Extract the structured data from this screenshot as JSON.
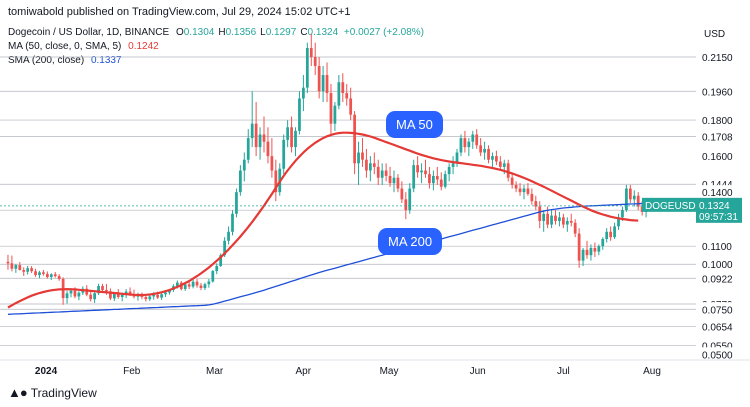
{
  "header": {
    "published": "tomiwabold published on TradingView.com, Jul 29, 2024 15:02 UTC+1",
    "symbol_line": "Dogecoin / US Dollar, 1D, BINANCE",
    "ohlc": [
      {
        "k": "O",
        "v": "0.1304"
      },
      {
        "k": "H",
        "v": "0.1356"
      },
      {
        "k": "L",
        "v": "0.1297"
      },
      {
        "k": "C",
        "v": "0.1324"
      }
    ],
    "change": "+0.0027 (+2.08%)",
    "ma50_label": "MA (50, close, 0, SMA, 5)",
    "ma50_value": "0.1242",
    "sma200_label": "SMA (200, close)",
    "sma200_value": "0.1337"
  },
  "callouts": {
    "ma50": "MA 50",
    "ma200": "MA 200"
  },
  "footer": {
    "brand": "TradingView"
  },
  "colors": {
    "up": "#26a69a",
    "down": "#ef5350",
    "ma50": "#e53935",
    "sma200": "#1e4fd8",
    "axis_text": "#131722",
    "grid": "#e0e3eb",
    "badge_current": "#26a69a"
  },
  "chart_data": {
    "type": "candlestick",
    "currency": "USD",
    "x_axis_ticks": [
      "2024",
      "Feb",
      "Mar",
      "Apr",
      "May",
      "Jun",
      "Jul",
      "Aug"
    ],
    "y_axis_labels": [
      "0.2150",
      "0.1960",
      "0.1800",
      "0.1708",
      "0.1600",
      "0.1444",
      "0.1400",
      "0.1300",
      "0.1100",
      "0.1000",
      "0.0922",
      "0.0779",
      "0.0750",
      "0.0654",
      "0.0550",
      "0.0500"
    ],
    "y_range": [
      0.0485,
      0.23
    ],
    "horizontal_levels": [
      0.215,
      0.196,
      0.18,
      0.1708,
      0.1444,
      0.13,
      0.11,
      0.1,
      0.0922,
      0.0779,
      0.075,
      0.0654,
      0.055
    ],
    "current_price": {
      "symbol": "DOGEUSD",
      "price": "0.1324",
      "countdown": "09:57:31",
      "value": 0.1324
    },
    "candles": [
      [
        0.1013,
        0.1052,
        0.097,
        0.1005
      ],
      [
        0.1005,
        0.1048,
        0.096,
        0.0975
      ],
      [
        0.0975,
        0.1002,
        0.0952,
        0.0995
      ],
      [
        0.0995,
        0.1012,
        0.0965,
        0.0968
      ],
      [
        0.0968,
        0.0983,
        0.0935,
        0.0958
      ],
      [
        0.0958,
        0.0991,
        0.0943,
        0.0978
      ],
      [
        0.0978,
        0.099,
        0.0951,
        0.0961
      ],
      [
        0.0961,
        0.0975,
        0.093,
        0.094
      ],
      [
        0.094,
        0.0963,
        0.0922,
        0.0955
      ],
      [
        0.0955,
        0.0968,
        0.0936,
        0.0946
      ],
      [
        0.0946,
        0.096,
        0.092,
        0.0929
      ],
      [
        0.0929,
        0.095,
        0.0912,
        0.0944
      ],
      [
        0.0944,
        0.0957,
        0.0926,
        0.0934
      ],
      [
        0.0934,
        0.0945,
        0.0908,
        0.0918
      ],
      [
        0.0918,
        0.0927,
        0.0775,
        0.0812
      ],
      [
        0.0812,
        0.0852,
        0.0782,
        0.0838
      ],
      [
        0.0838,
        0.0868,
        0.0816,
        0.0853
      ],
      [
        0.0853,
        0.0872,
        0.0811,
        0.0821
      ],
      [
        0.0821,
        0.085,
        0.08,
        0.0842
      ],
      [
        0.0842,
        0.0877,
        0.0829,
        0.0864
      ],
      [
        0.0864,
        0.0884,
        0.0822,
        0.0831
      ],
      [
        0.0831,
        0.0855,
        0.0793,
        0.0806
      ],
      [
        0.0806,
        0.0845,
        0.0785,
        0.0839
      ],
      [
        0.0839,
        0.0892,
        0.0829,
        0.0879
      ],
      [
        0.0879,
        0.0891,
        0.0843,
        0.0857
      ],
      [
        0.0857,
        0.089,
        0.083,
        0.085
      ],
      [
        0.085,
        0.0866,
        0.08,
        0.081
      ],
      [
        0.081,
        0.0843,
        0.0795,
        0.0836
      ],
      [
        0.0836,
        0.0862,
        0.0808,
        0.0818
      ],
      [
        0.0818,
        0.0843,
        0.0794,
        0.0832
      ],
      [
        0.0832,
        0.0862,
        0.0812,
        0.0848
      ],
      [
        0.0848,
        0.0871,
        0.0824,
        0.0834
      ],
      [
        0.0834,
        0.0859,
        0.081,
        0.082
      ],
      [
        0.082,
        0.0842,
        0.0798,
        0.0828
      ],
      [
        0.0828,
        0.0843,
        0.0805,
        0.0818
      ],
      [
        0.0818,
        0.0832,
        0.0793,
        0.0806
      ],
      [
        0.0806,
        0.0834,
        0.0796,
        0.0821
      ],
      [
        0.0821,
        0.0845,
        0.0803,
        0.083
      ],
      [
        0.083,
        0.0848,
        0.0807,
        0.0815
      ],
      [
        0.0815,
        0.084,
        0.0802,
        0.0833
      ],
      [
        0.0833,
        0.085,
        0.0818,
        0.0843
      ],
      [
        0.0843,
        0.0862,
        0.0831,
        0.0857
      ],
      [
        0.0857,
        0.0889,
        0.0846,
        0.0878
      ],
      [
        0.0878,
        0.091,
        0.0865,
        0.0898
      ],
      [
        0.0898,
        0.0907,
        0.0855,
        0.0862
      ],
      [
        0.0862,
        0.0892,
        0.0852,
        0.0888
      ],
      [
        0.0888,
        0.0908,
        0.0862,
        0.0876
      ],
      [
        0.0876,
        0.0915,
        0.0866,
        0.0903
      ],
      [
        0.0903,
        0.0918,
        0.087,
        0.0882
      ],
      [
        0.0882,
        0.0896,
        0.0856,
        0.0868
      ],
      [
        0.0868,
        0.0897,
        0.0857,
        0.0889
      ],
      [
        0.0889,
        0.0918,
        0.087,
        0.0904
      ],
      [
        0.0904,
        0.0968,
        0.0898,
        0.0962
      ],
      [
        0.0962,
        0.1005,
        0.0945,
        0.099
      ],
      [
        0.099,
        0.106,
        0.0985,
        0.105
      ],
      [
        0.105,
        0.115,
        0.104,
        0.113
      ],
      [
        0.113,
        0.121,
        0.111,
        0.118
      ],
      [
        0.118,
        0.13,
        0.116,
        0.128
      ],
      [
        0.128,
        0.142,
        0.126,
        0.14
      ],
      [
        0.14,
        0.155,
        0.138,
        0.152
      ],
      [
        0.152,
        0.162,
        0.146,
        0.158
      ],
      [
        0.158,
        0.175,
        0.156,
        0.17
      ],
      [
        0.17,
        0.196,
        0.165,
        0.178
      ],
      [
        0.178,
        0.19,
        0.16,
        0.165
      ],
      [
        0.165,
        0.176,
        0.158,
        0.172
      ],
      [
        0.172,
        0.182,
        0.162,
        0.168
      ],
      [
        0.168,
        0.176,
        0.156,
        0.16
      ],
      [
        0.16,
        0.17,
        0.148,
        0.152
      ],
      [
        0.152,
        0.158,
        0.135,
        0.14
      ],
      [
        0.14,
        0.156,
        0.138,
        0.153
      ],
      [
        0.153,
        0.172,
        0.15,
        0.169
      ],
      [
        0.169,
        0.18,
        0.165,
        0.176
      ],
      [
        0.176,
        0.182,
        0.162,
        0.165
      ],
      [
        0.165,
        0.176,
        0.16,
        0.174
      ],
      [
        0.174,
        0.196,
        0.172,
        0.192
      ],
      [
        0.192,
        0.205,
        0.185,
        0.198
      ],
      [
        0.198,
        0.223,
        0.195,
        0.22
      ],
      [
        0.22,
        0.228,
        0.21,
        0.215
      ],
      [
        0.215,
        0.223,
        0.205,
        0.21
      ],
      [
        0.21,
        0.215,
        0.192,
        0.196
      ],
      [
        0.196,
        0.21,
        0.19,
        0.205
      ],
      [
        0.205,
        0.212,
        0.19,
        0.195
      ],
      [
        0.195,
        0.2,
        0.172,
        0.178
      ],
      [
        0.178,
        0.19,
        0.174,
        0.188
      ],
      [
        0.188,
        0.205,
        0.186,
        0.201
      ],
      [
        0.201,
        0.206,
        0.19,
        0.195
      ],
      [
        0.195,
        0.2,
        0.188,
        0.192
      ],
      [
        0.192,
        0.198,
        0.18,
        0.183
      ],
      [
        0.183,
        0.185,
        0.15,
        0.156
      ],
      [
        0.156,
        0.168,
        0.144,
        0.162
      ],
      [
        0.162,
        0.17,
        0.154,
        0.158
      ],
      [
        0.158,
        0.164,
        0.148,
        0.152
      ],
      [
        0.152,
        0.16,
        0.146,
        0.156
      ],
      [
        0.156,
        0.162,
        0.15,
        0.154
      ],
      [
        0.154,
        0.158,
        0.144,
        0.148
      ],
      [
        0.148,
        0.156,
        0.144,
        0.152
      ],
      [
        0.152,
        0.156,
        0.146,
        0.149
      ],
      [
        0.149,
        0.154,
        0.143,
        0.145
      ],
      [
        0.145,
        0.152,
        0.14,
        0.148
      ],
      [
        0.148,
        0.15,
        0.14,
        0.142
      ],
      [
        0.142,
        0.146,
        0.134,
        0.136
      ],
      [
        0.136,
        0.14,
        0.125,
        0.13
      ],
      [
        0.13,
        0.145,
        0.128,
        0.142
      ],
      [
        0.142,
        0.158,
        0.14,
        0.155
      ],
      [
        0.155,
        0.16,
        0.148,
        0.151
      ],
      [
        0.151,
        0.156,
        0.145,
        0.152
      ],
      [
        0.152,
        0.158,
        0.148,
        0.15
      ],
      [
        0.15,
        0.154,
        0.142,
        0.145
      ],
      [
        0.145,
        0.152,
        0.141,
        0.149
      ],
      [
        0.149,
        0.154,
        0.144,
        0.147
      ],
      [
        0.147,
        0.151,
        0.141,
        0.143
      ],
      [
        0.143,
        0.152,
        0.142,
        0.15
      ],
      [
        0.15,
        0.156,
        0.146,
        0.154
      ],
      [
        0.154,
        0.16,
        0.15,
        0.156
      ],
      [
        0.156,
        0.164,
        0.154,
        0.162
      ],
      [
        0.162,
        0.172,
        0.16,
        0.17
      ],
      [
        0.17,
        0.174,
        0.162,
        0.165
      ],
      [
        0.165,
        0.17,
        0.16,
        0.168
      ],
      [
        0.168,
        0.174,
        0.164,
        0.172
      ],
      [
        0.172,
        0.175,
        0.164,
        0.166
      ],
      [
        0.166,
        0.17,
        0.16,
        0.162
      ],
      [
        0.162,
        0.168,
        0.158,
        0.164
      ],
      [
        0.164,
        0.166,
        0.156,
        0.158
      ],
      [
        0.158,
        0.162,
        0.154,
        0.16
      ],
      [
        0.16,
        0.163,
        0.155,
        0.157
      ],
      [
        0.157,
        0.16,
        0.152,
        0.154
      ],
      [
        0.154,
        0.158,
        0.15,
        0.156
      ],
      [
        0.156,
        0.158,
        0.146,
        0.148
      ],
      [
        0.148,
        0.15,
        0.142,
        0.144
      ],
      [
        0.144,
        0.146,
        0.14,
        0.142
      ],
      [
        0.142,
        0.145,
        0.138,
        0.14
      ],
      [
        0.14,
        0.144,
        0.136,
        0.142
      ],
      [
        0.142,
        0.145,
        0.138,
        0.139
      ],
      [
        0.139,
        0.142,
        0.133,
        0.135
      ],
      [
        0.135,
        0.138,
        0.13,
        0.132
      ],
      [
        0.132,
        0.135,
        0.12,
        0.124
      ],
      [
        0.124,
        0.13,
        0.118,
        0.128
      ],
      [
        0.128,
        0.132,
        0.12,
        0.122
      ],
      [
        0.122,
        0.13,
        0.12,
        0.127
      ],
      [
        0.127,
        0.13,
        0.122,
        0.124
      ],
      [
        0.124,
        0.129,
        0.121,
        0.126
      ],
      [
        0.126,
        0.128,
        0.12,
        0.122
      ],
      [
        0.122,
        0.126,
        0.118,
        0.124
      ],
      [
        0.124,
        0.128,
        0.121,
        0.123
      ],
      [
        0.123,
        0.125,
        0.115,
        0.117
      ],
      [
        0.117,
        0.12,
        0.098,
        0.102
      ],
      [
        0.102,
        0.109,
        0.099,
        0.108
      ],
      [
        0.108,
        0.113,
        0.103,
        0.105
      ],
      [
        0.105,
        0.111,
        0.102,
        0.109
      ],
      [
        0.109,
        0.112,
        0.104,
        0.107
      ],
      [
        0.107,
        0.111,
        0.105,
        0.11
      ],
      [
        0.11,
        0.115,
        0.108,
        0.114
      ],
      [
        0.114,
        0.12,
        0.112,
        0.118
      ],
      [
        0.118,
        0.121,
        0.113,
        0.115
      ],
      [
        0.115,
        0.123,
        0.114,
        0.121
      ],
      [
        0.121,
        0.128,
        0.119,
        0.126
      ],
      [
        0.126,
        0.132,
        0.124,
        0.13
      ],
      [
        0.13,
        0.144,
        0.129,
        0.142
      ],
      [
        0.142,
        0.144,
        0.134,
        0.136
      ],
      [
        0.136,
        0.141,
        0.132,
        0.138
      ],
      [
        0.138,
        0.14,
        0.13,
        0.132
      ],
      [
        0.132,
        0.135,
        0.127,
        0.129
      ],
      [
        0.129,
        0.133,
        0.126,
        0.13
      ],
      [
        0.1304,
        0.1356,
        0.1297,
        0.1324
      ]
    ],
    "ma50": [
      0.076,
      0.0772,
      0.0784,
      0.0795,
      0.0806,
      0.0816,
      0.0825,
      0.0833,
      0.084,
      0.0846,
      0.0851,
      0.0855,
      0.0858,
      0.086,
      0.0861,
      0.0862,
      0.0861,
      0.086,
      0.0858,
      0.0856,
      0.0854,
      0.0852,
      0.085,
      0.0848,
      0.0846,
      0.0844,
      0.0842,
      0.084,
      0.0838,
      0.0836,
      0.0834,
      0.0832,
      0.083,
      0.0829,
      0.0829,
      0.083,
      0.0832,
      0.0835,
      0.0839,
      0.0844,
      0.085,
      0.0857,
      0.0865,
      0.0874,
      0.0884,
      0.0895,
      0.0907,
      0.092,
      0.0934,
      0.0949,
      0.0965,
      0.0982,
      0.1,
      0.1019,
      0.1039,
      0.106,
      0.1082,
      0.1105,
      0.1129,
      0.1154,
      0.118,
      0.1207,
      0.1235,
      0.1264,
      0.1294,
      0.1325,
      0.1357,
      0.139,
      0.1424,
      0.1458,
      0.149,
      0.152,
      0.1548,
      0.1574,
      0.1598,
      0.162,
      0.164,
      0.1658,
      0.1674,
      0.1688,
      0.17,
      0.171,
      0.1718,
      0.1724,
      0.1728,
      0.173,
      0.173,
      0.1729,
      0.1727,
      0.1724,
      0.172,
      0.1715,
      0.1709,
      0.1702,
      0.1694,
      0.1686,
      0.1678,
      0.167,
      0.1662,
      0.1654,
      0.1646,
      0.1638,
      0.163,
      0.1622,
      0.1614,
      0.1607,
      0.16,
      0.1594,
      0.1588,
      0.1583,
      0.1578,
      0.1574,
      0.157,
      0.1567,
      0.1564,
      0.1561,
      0.1558,
      0.1555,
      0.1552,
      0.1549,
      0.1546,
      0.1542,
      0.1538,
      0.1534,
      0.1529,
      0.1524,
      0.1518,
      0.1511,
      0.1504,
      0.1496,
      0.1488,
      0.1479,
      0.147,
      0.146,
      0.145,
      0.144,
      0.143,
      0.1419,
      0.1408,
      0.1397,
      0.1386,
      0.1375,
      0.1364,
      0.1353,
      0.1342,
      0.1331,
      0.132,
      0.131,
      0.13,
      0.1291,
      0.1283,
      0.1276,
      0.127,
      0.1264,
      0.1259,
      0.1255,
      0.1251,
      0.1248,
      0.1245,
      0.1243,
      0.1242
    ],
    "sma200": [
      0.0722,
      0.0723,
      0.0724,
      0.0725,
      0.0726,
      0.0727,
      0.0728,
      0.0729,
      0.073,
      0.0731,
      0.0732,
      0.0733,
      0.0734,
      0.0735,
      0.0736,
      0.0737,
      0.0738,
      0.0739,
      0.074,
      0.0741,
      0.0742,
      0.0743,
      0.0744,
      0.0745,
      0.0746,
      0.0747,
      0.0748,
      0.0749,
      0.075,
      0.0751,
      0.0752,
      0.0753,
      0.0754,
      0.0755,
      0.0756,
      0.0757,
      0.0758,
      0.0759,
      0.076,
      0.0761,
      0.0762,
      0.0763,
      0.0764,
      0.0765,
      0.0766,
      0.0767,
      0.0768,
      0.0769,
      0.077,
      0.0771,
      0.0772,
      0.0774,
      0.0778,
      0.0783,
      0.0789,
      0.0795,
      0.0801,
      0.0807,
      0.0813,
      0.0819,
      0.0825,
      0.0831,
      0.0837,
      0.0843,
      0.0849,
      0.0856,
      0.0863,
      0.087,
      0.0877,
      0.0884,
      0.0891,
      0.0898,
      0.0905,
      0.0912,
      0.0919,
      0.0926,
      0.0933,
      0.094,
      0.0947,
      0.0954,
      0.096,
      0.0966,
      0.0972,
      0.0978,
      0.0984,
      0.099,
      0.0996,
      0.1002,
      0.1008,
      0.1014,
      0.102,
      0.1026,
      0.1032,
      0.1038,
      0.1044,
      0.105,
      0.1056,
      0.1062,
      0.1068,
      0.1074,
      0.108,
      0.1086,
      0.1092,
      0.1098,
      0.1104,
      0.111,
      0.1116,
      0.1122,
      0.1128,
      0.1134,
      0.114,
      0.1146,
      0.1152,
      0.1158,
      0.1164,
      0.117,
      0.1176,
      0.1182,
      0.1188,
      0.1194,
      0.12,
      0.1206,
      0.1212,
      0.1218,
      0.1224,
      0.123,
      0.1236,
      0.1242,
      0.1248,
      0.1254,
      0.126,
      0.1266,
      0.1272,
      0.1278,
      0.1284,
      0.129,
      0.1295,
      0.1299,
      0.1303,
      0.1306,
      0.1309,
      0.1312,
      0.1314,
      0.1316,
      0.1318,
      0.132,
      0.1322,
      0.1323,
      0.1324,
      0.1325,
      0.1326,
      0.1327,
      0.1328,
      0.1329,
      0.133,
      0.1331,
      0.1332,
      0.1333,
      0.1334,
      0.1335,
      0.1336,
      0.1337
    ]
  }
}
